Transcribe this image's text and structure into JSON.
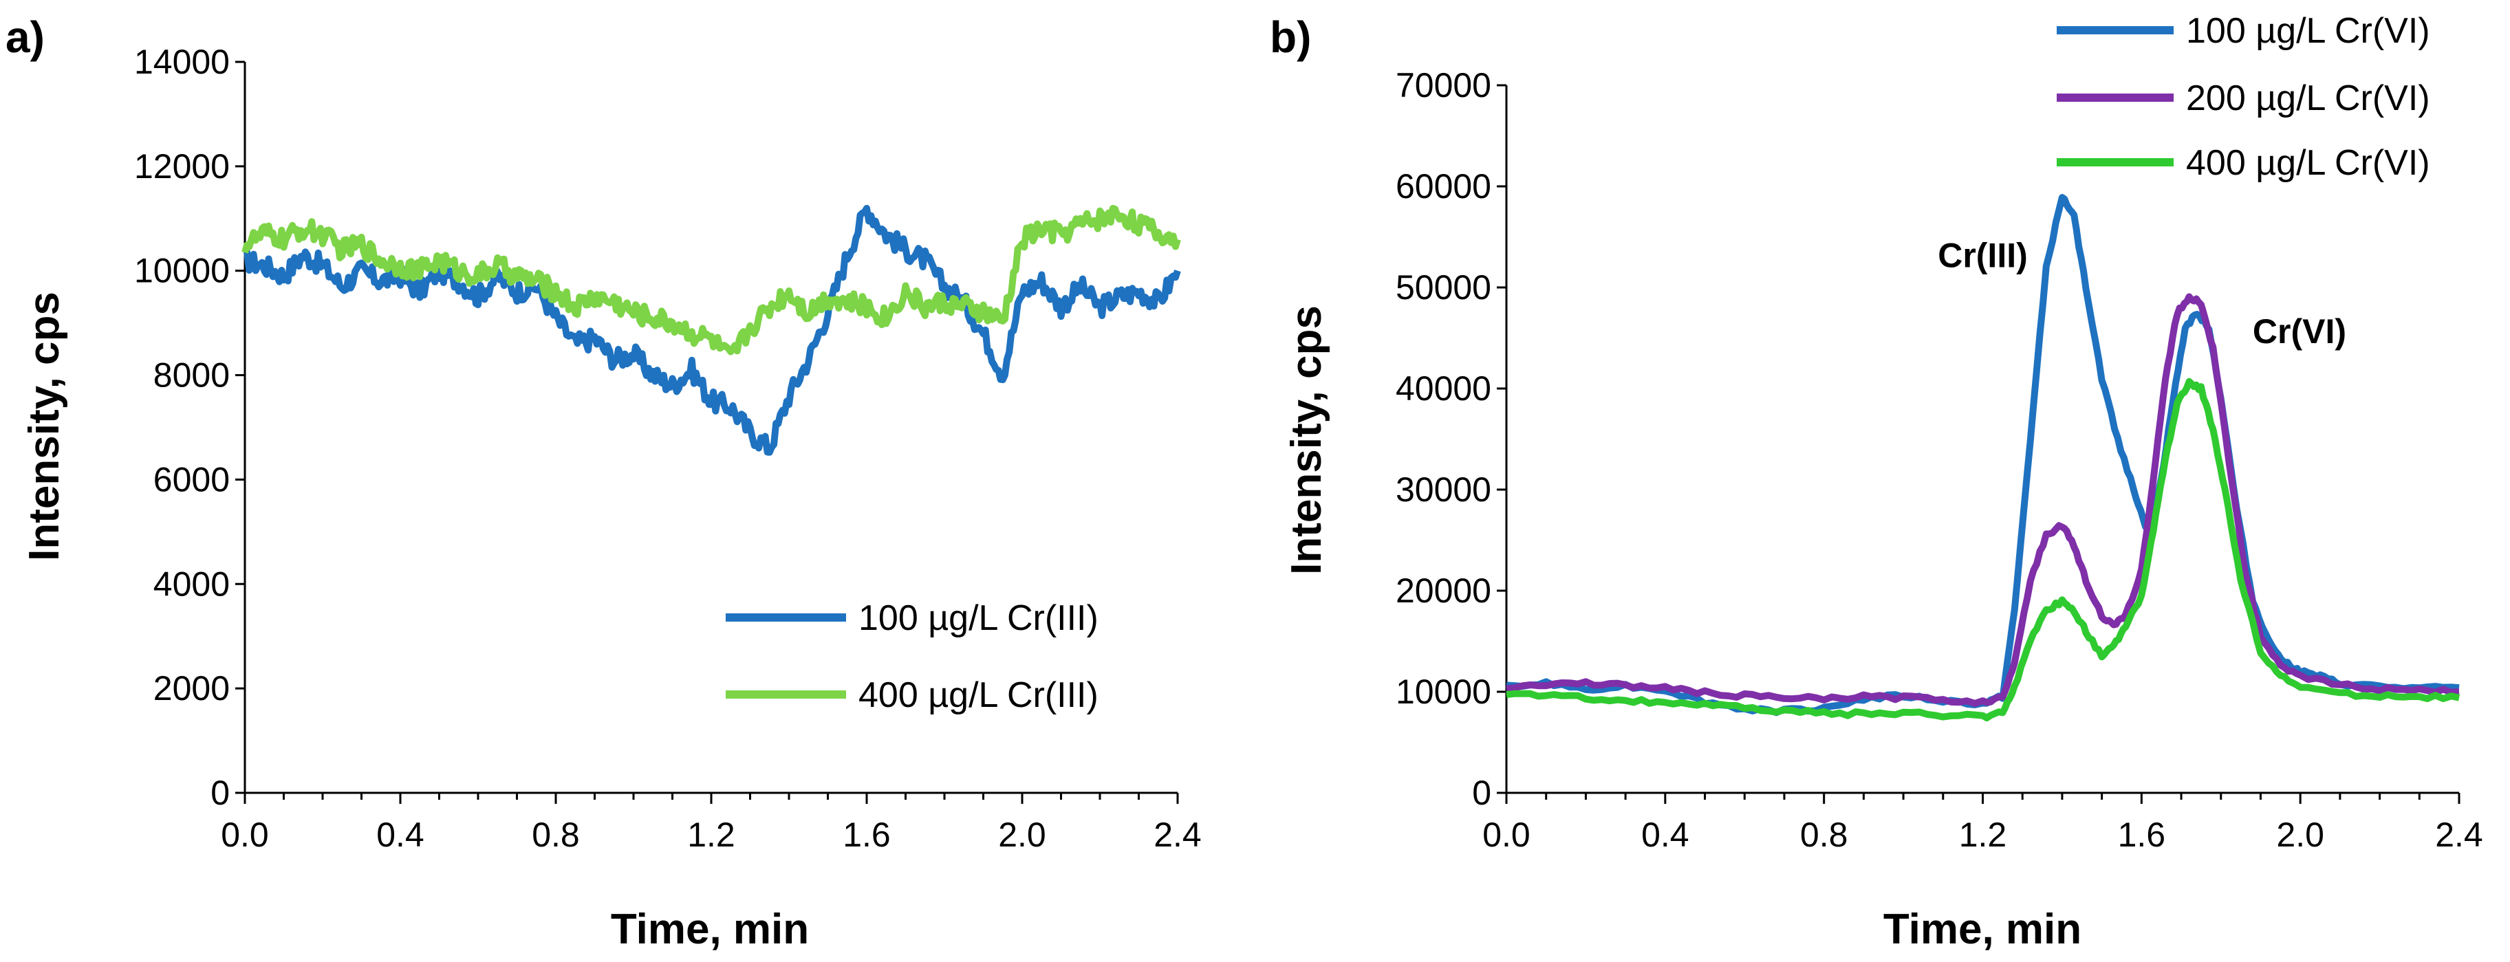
{
  "chart_data": [
    {
      "panel_label": "a)",
      "type": "line",
      "xlabel": "Time, min",
      "ylabel": "Intensity, cps",
      "xlim": [
        0,
        2.4
      ],
      "ylim": [
        0,
        14000
      ],
      "xticks": [
        "0.0",
        "0.4",
        "0.8",
        "1.2",
        "1.6",
        "2.0",
        "2.4"
      ],
      "yticks": [
        "0",
        "2000",
        "4000",
        "6000",
        "8000",
        "10000",
        "12000",
        "14000"
      ],
      "legend_position": "bottom-right",
      "series": [
        {
          "name": "100 µg/L Cr(III)",
          "color": "#1f72c0",
          "x": [
            0.0,
            0.05,
            0.1,
            0.15,
            0.2,
            0.25,
            0.3,
            0.35,
            0.4,
            0.45,
            0.5,
            0.55,
            0.6,
            0.65,
            0.7,
            0.75,
            0.8,
            0.85,
            0.9,
            0.95,
            1.0,
            1.05,
            1.1,
            1.15,
            1.2,
            1.25,
            1.3,
            1.35,
            1.4,
            1.45,
            1.5,
            1.55,
            1.6,
            1.65,
            1.7,
            1.75,
            1.8,
            1.85,
            1.9,
            1.95,
            2.0,
            2.05,
            2.1,
            2.15,
            2.2,
            2.25,
            2.3,
            2.35,
            2.4
          ],
          "values": [
            10200,
            10100,
            9900,
            10300,
            10100,
            9700,
            10000,
            9800,
            9900,
            9600,
            10000,
            9800,
            9500,
            9900,
            9600,
            9700,
            9100,
            8600,
            8700,
            8300,
            8400,
            8000,
            7800,
            8100,
            7500,
            7400,
            6900,
            6600,
            7600,
            8300,
            9200,
            10300,
            11200,
            10700,
            10400,
            10200,
            9700,
            9400,
            8800,
            8000,
            9600,
            9800,
            9300,
            9700,
            9300,
            9500,
            9600,
            9400,
            10000
          ]
        },
        {
          "name": "400 µg/L Cr(III)",
          "color": "#7dd447",
          "x": [
            0.0,
            0.05,
            0.1,
            0.15,
            0.2,
            0.25,
            0.3,
            0.35,
            0.4,
            0.45,
            0.5,
            0.55,
            0.6,
            0.65,
            0.7,
            0.75,
            0.8,
            0.85,
            0.9,
            0.95,
            1.0,
            1.05,
            1.1,
            1.15,
            1.2,
            1.25,
            1.3,
            1.35,
            1.4,
            1.45,
            1.5,
            1.55,
            1.6,
            1.65,
            1.7,
            1.75,
            1.8,
            1.85,
            1.9,
            1.95,
            2.0,
            2.05,
            2.1,
            2.15,
            2.2,
            2.25,
            2.3,
            2.35,
            2.4
          ],
          "values": [
            10500,
            10700,
            10600,
            10800,
            10700,
            10400,
            10500,
            10200,
            10100,
            10000,
            10200,
            10000,
            9900,
            10100,
            9900,
            9800,
            9600,
            9300,
            9500,
            9400,
            9200,
            9100,
            9000,
            8800,
            8700,
            8300,
            8900,
            9300,
            9600,
            9200,
            9500,
            9400,
            9300,
            9100,
            9600,
            9300,
            9400,
            9300,
            9200,
            9000,
            10600,
            10800,
            10700,
            10900,
            11000,
            11100,
            10900,
            10700,
            10600
          ]
        }
      ]
    },
    {
      "panel_label": "b)",
      "type": "line",
      "xlabel": "Time, min",
      "ylabel": "Intensity, cps",
      "xlim": [
        0,
        2.4
      ],
      "ylim": [
        0,
        70000
      ],
      "xticks": [
        "0.0",
        "0.4",
        "0.8",
        "1.2",
        "1.6",
        "2.0",
        "2.4"
      ],
      "yticks": [
        "0",
        "10000",
        "20000",
        "30000",
        "40000",
        "50000",
        "60000",
        "70000"
      ],
      "legend_position": "top-right",
      "annotations": [
        {
          "text": "Cr(III)",
          "x": 1.2,
          "y": 52000
        },
        {
          "text": "Cr(VI)",
          "x": 1.88,
          "y": 44500
        }
      ],
      "series": [
        {
          "name": "100 µg/L Cr(VI)",
          "color": "#1f72c0",
          "x": [
            0.0,
            0.1,
            0.2,
            0.3,
            0.4,
            0.5,
            0.6,
            0.7,
            0.8,
            0.9,
            1.0,
            1.1,
            1.2,
            1.25,
            1.28,
            1.32,
            1.36,
            1.4,
            1.43,
            1.46,
            1.5,
            1.54,
            1.58,
            1.61,
            1.63,
            1.65,
            1.68,
            1.71,
            1.74,
            1.77,
            1.8,
            1.84,
            1.88,
            1.92,
            1.96,
            2.0,
            2.05,
            2.1,
            2.2,
            2.3,
            2.4
          ],
          "values": [
            10500,
            10800,
            10300,
            10600,
            10200,
            9000,
            8300,
            8100,
            8400,
            9300,
            9600,
            9100,
            8800,
            9500,
            18000,
            35000,
            52000,
            59000,
            57000,
            50000,
            41000,
            35000,
            30000,
            26500,
            28000,
            31000,
            39000,
            46000,
            47500,
            46000,
            39000,
            28000,
            19000,
            15000,
            13000,
            12000,
            11500,
            10800,
            10500,
            10300,
            10400
          ]
        },
        {
          "name": "200 µg/L Cr(VI)",
          "color": "#7f2fa8",
          "x": [
            0.0,
            0.1,
            0.2,
            0.3,
            0.4,
            0.5,
            0.6,
            0.7,
            0.8,
            0.9,
            1.0,
            1.1,
            1.2,
            1.25,
            1.28,
            1.32,
            1.36,
            1.4,
            1.43,
            1.46,
            1.5,
            1.53,
            1.56,
            1.6,
            1.63,
            1.66,
            1.69,
            1.72,
            1.75,
            1.78,
            1.82,
            1.86,
            1.9,
            1.95,
            2.0,
            2.1,
            2.2,
            2.3,
            2.4
          ],
          "values": [
            10500,
            10700,
            10900,
            10600,
            10400,
            9900,
            9600,
            9400,
            9300,
            9500,
            9400,
            9200,
            9000,
            9400,
            13000,
            21000,
            25500,
            26500,
            24500,
            21000,
            17500,
            16500,
            17500,
            22000,
            31000,
            41000,
            47500,
            49000,
            48500,
            44000,
            33000,
            22000,
            15500,
            12500,
            11500,
            10700,
            10300,
            10100,
            10000
          ]
        },
        {
          "name": "400 µg/L Cr(VI)",
          "color": "#2fca2f",
          "x": [
            0.0,
            0.1,
            0.2,
            0.3,
            0.4,
            0.5,
            0.6,
            0.7,
            0.8,
            0.9,
            1.0,
            1.1,
            1.2,
            1.25,
            1.28,
            1.32,
            1.36,
            1.4,
            1.43,
            1.46,
            1.5,
            1.53,
            1.56,
            1.6,
            1.63,
            1.66,
            1.69,
            1.72,
            1.75,
            1.78,
            1.81,
            1.85,
            1.9,
            1.95,
            2.0,
            2.1,
            2.2,
            2.3,
            2.4
          ],
          "values": [
            9800,
            9600,
            9400,
            9100,
            9000,
            8700,
            8400,
            8100,
            7900,
            7800,
            7900,
            7700,
            7500,
            8000,
            10500,
            15000,
            18000,
            19000,
            18000,
            16000,
            13500,
            14500,
            16500,
            19500,
            26000,
            33000,
            38500,
            40500,
            40000,
            36000,
            30000,
            21000,
            14000,
            11500,
            10500,
            9800,
            9600,
            9500,
            9400
          ]
        }
      ]
    }
  ]
}
